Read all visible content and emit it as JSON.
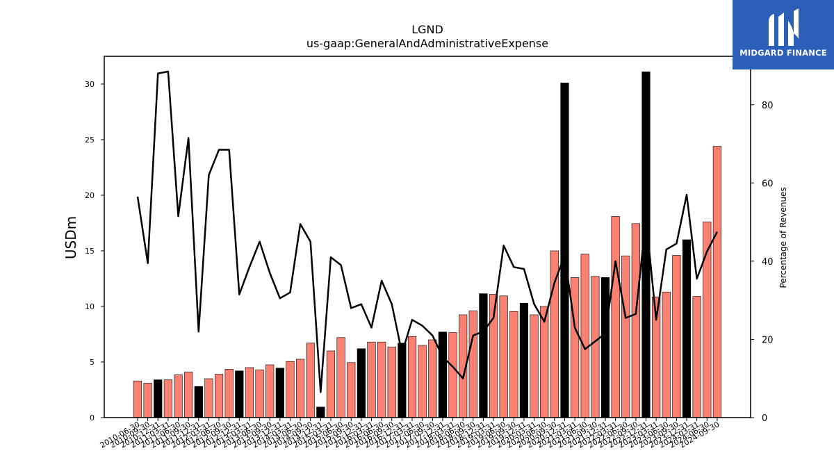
{
  "brand": {
    "name": "MIDGARD FINANCE",
    "bg": "#2c5fb8"
  },
  "chart_data": {
    "type": "bar",
    "title": "LGND",
    "subtitle": "us-gaap:GeneralAndAdministrativeExpense",
    "ylabel": "USDm",
    "ylabel_right": "Percentage of Revenues",
    "ylim": [
      0,
      32.5
    ],
    "ylim_right": [
      0,
      92.4
    ],
    "yticks": [
      0,
      5,
      10,
      15,
      20,
      25,
      30
    ],
    "yticks_right": [
      0,
      20,
      40,
      60,
      80
    ],
    "grid": false,
    "bar_colors": {
      "quarter": "#fa8072",
      "annual": "#000000"
    },
    "line_color": "#000000",
    "x_tick_labels": [
      "2010-06-30",
      "2010-09-30",
      "2010-12-31",
      "2011-03-31",
      "2011-06-30",
      "2011-09-30",
      "2011-12-31",
      "2012-03-31",
      "2012-06-30",
      "2012-09-30",
      "2012-12-31",
      "2013-03-31",
      "2013-06-30",
      "2013-09-30",
      "2013-12-31",
      "2014-03-31",
      "2014-06-30",
      "2014-09-30",
      "2014-12-31",
      "2015-03-31",
      "2015-06-30",
      "2015-09-30",
      "2015-12-31",
      "2016-03-31",
      "2016-06-30",
      "2016-09-30",
      "2016-12-31",
      "2017-03-31",
      "2017-06-30",
      "2017-09-30",
      "2017-12-31",
      "2018-03-31",
      "2018-06-30",
      "2018-09-30",
      "2018-12-31",
      "2019-03-31",
      "2019-06-30",
      "2019-09-30",
      "2019-12-31",
      "2020-03-31",
      "2020-06-30",
      "2020-09-30",
      "2020-12-31",
      "2021-03-31",
      "2021-06-30",
      "2021-09-30",
      "2021-12-31",
      "2022-03-31",
      "2022-06-30",
      "2022-09-30",
      "2022-12-31",
      "2023-03-31",
      "2023-06-30",
      "2023-09-30",
      "2023-12-31",
      "2024-03-31",
      "2024-06-30",
      "2024-09-30"
    ],
    "series": [
      {
        "kind": "bar",
        "values": [
          3.3,
          3.1,
          3.4,
          3.4,
          3.85,
          4.1,
          2.8,
          3.5,
          3.9,
          4.35,
          4.2,
          4.5,
          4.3,
          4.75,
          4.45,
          5.05,
          5.25,
          6.7,
          0.95,
          6.0,
          7.2,
          4.95,
          6.2,
          6.8,
          6.8,
          6.35,
          6.7,
          7.3,
          6.5,
          7.0,
          7.7,
          7.65,
          9.25,
          9.6,
          11.15,
          11.1,
          10.95,
          9.55,
          10.3,
          9.25,
          10.0,
          15.0,
          30.1,
          12.6,
          14.7,
          12.7,
          12.6,
          18.1,
          14.55,
          17.45,
          31.1,
          10.85,
          11.3,
          14.6,
          16.0,
          10.9,
          17.6,
          24.4
        ],
        "annual": [
          false,
          false,
          true,
          false,
          false,
          false,
          true,
          false,
          false,
          false,
          true,
          false,
          false,
          false,
          true,
          false,
          false,
          false,
          true,
          false,
          false,
          false,
          true,
          false,
          false,
          false,
          true,
          false,
          false,
          false,
          true,
          false,
          false,
          false,
          true,
          false,
          false,
          false,
          true,
          false,
          false,
          false,
          true,
          false,
          false,
          false,
          true,
          false,
          false,
          false,
          true,
          false,
          false,
          false,
          true,
          false,
          false,
          false
        ]
      },
      {
        "kind": "line",
        "axis": "right",
        "values": [
          56.5,
          39.5,
          88.0,
          88.5,
          51.5,
          71.5,
          22.0,
          62.0,
          68.5,
          68.5,
          31.5,
          38.5,
          45.0,
          37.0,
          30.5,
          32.0,
          49.5,
          45.0,
          6.5,
          41.0,
          39.0,
          28.0,
          29.0,
          23.0,
          35.0,
          29.0,
          16.5,
          25.0,
          23.5,
          21.0,
          15.5,
          13.0,
          10.0,
          21.0,
          22.0,
          25.5,
          44.0,
          38.5,
          38.0,
          29.0,
          24.5,
          34.5,
          41.5,
          23.0,
          17.5,
          19.5,
          21.5,
          40.0,
          25.5,
          26.5,
          51.0,
          25.0,
          43.0,
          44.5,
          57.0,
          35.5,
          42.5,
          47.5
        ]
      }
    ]
  }
}
